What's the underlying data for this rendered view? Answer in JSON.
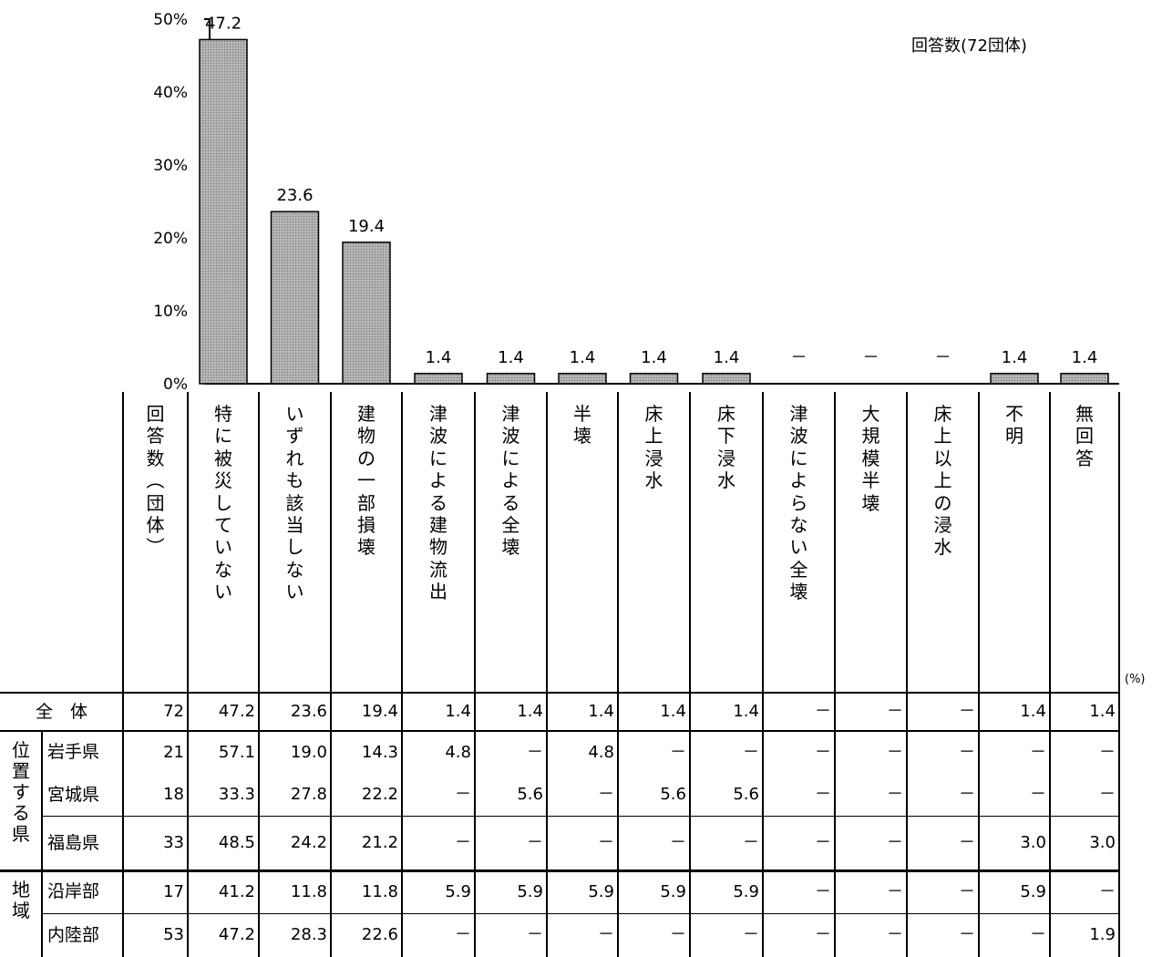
{
  "chart_data": {
    "type": "bar",
    "categories": [
      "特に被災していない",
      "いずれも該当しない",
      "建物の一部損壊",
      "津波による建物流出",
      "津波による全壊",
      "半壊",
      "床上浸水",
      "床下浸水",
      "津波によらない全壊",
      "大規模半壊",
      "床上以上の浸水",
      "不明",
      "無回答"
    ],
    "values": [
      47.2,
      23.6,
      19.4,
      1.4,
      1.4,
      1.4,
      1.4,
      1.4,
      0,
      0,
      0,
      1.4,
      1.4
    ],
    "data_labels": [
      "47.2",
      "23.6",
      "19.4",
      "1.4",
      "1.4",
      "1.4",
      "1.4",
      "1.4",
      "－",
      "－",
      "－",
      "1.4",
      "1.4"
    ],
    "y_ticks": [
      "0%",
      "10%",
      "20%",
      "30%",
      "40%",
      "50%"
    ],
    "ylim": [
      0,
      50
    ],
    "annotation": "回答数(72団体)",
    "bar_fill": "#a8a8a8",
    "bar_stroke": "#000000"
  },
  "table": {
    "count_header": "回答数(団体)",
    "count_header_parts": [
      "回",
      "答",
      "数",
      "︵",
      "団",
      "体",
      "︶"
    ],
    "unit": "(%)",
    "groups": [
      {
        "label": "",
        "rows": [
          {
            "label": "全　体",
            "count": "72",
            "values": [
              "47.2",
              "23.6",
              "19.4",
              "1.4",
              "1.4",
              "1.4",
              "1.4",
              "1.4",
              "－",
              "－",
              "－",
              "1.4",
              "1.4"
            ]
          }
        ]
      },
      {
        "label": "位置する県",
        "rows": [
          {
            "label": "岩手県",
            "count": "21",
            "values": [
              "57.1",
              "19.0",
              "14.3",
              "4.8",
              "－",
              "4.8",
              "－",
              "－",
              "－",
              "－",
              "－",
              "－",
              "－"
            ]
          },
          {
            "label": "宮城県",
            "count": "18",
            "values": [
              "33.3",
              "27.8",
              "22.2",
              "－",
              "5.6",
              "－",
              "5.6",
              "5.6",
              "－",
              "－",
              "－",
              "－",
              "－"
            ]
          },
          {
            "label": "福島県",
            "count": "33",
            "values": [
              "48.5",
              "24.2",
              "21.2",
              "－",
              "－",
              "－",
              "－",
              "－",
              "－",
              "－",
              "－",
              "3.0",
              "3.0"
            ]
          }
        ]
      },
      {
        "label": "地域",
        "rows": [
          {
            "label": "沿岸部",
            "count": "17",
            "values": [
              "41.2",
              "11.8",
              "11.8",
              "5.9",
              "5.9",
              "5.9",
              "5.9",
              "5.9",
              "－",
              "－",
              "－",
              "5.9",
              "－"
            ]
          },
          {
            "label": "内陸部",
            "count": "53",
            "values": [
              "47.2",
              "28.3",
              "22.6",
              "－",
              "－",
              "－",
              "－",
              "－",
              "－",
              "－",
              "－",
              "－",
              "1.9"
            ]
          }
        ]
      }
    ]
  }
}
